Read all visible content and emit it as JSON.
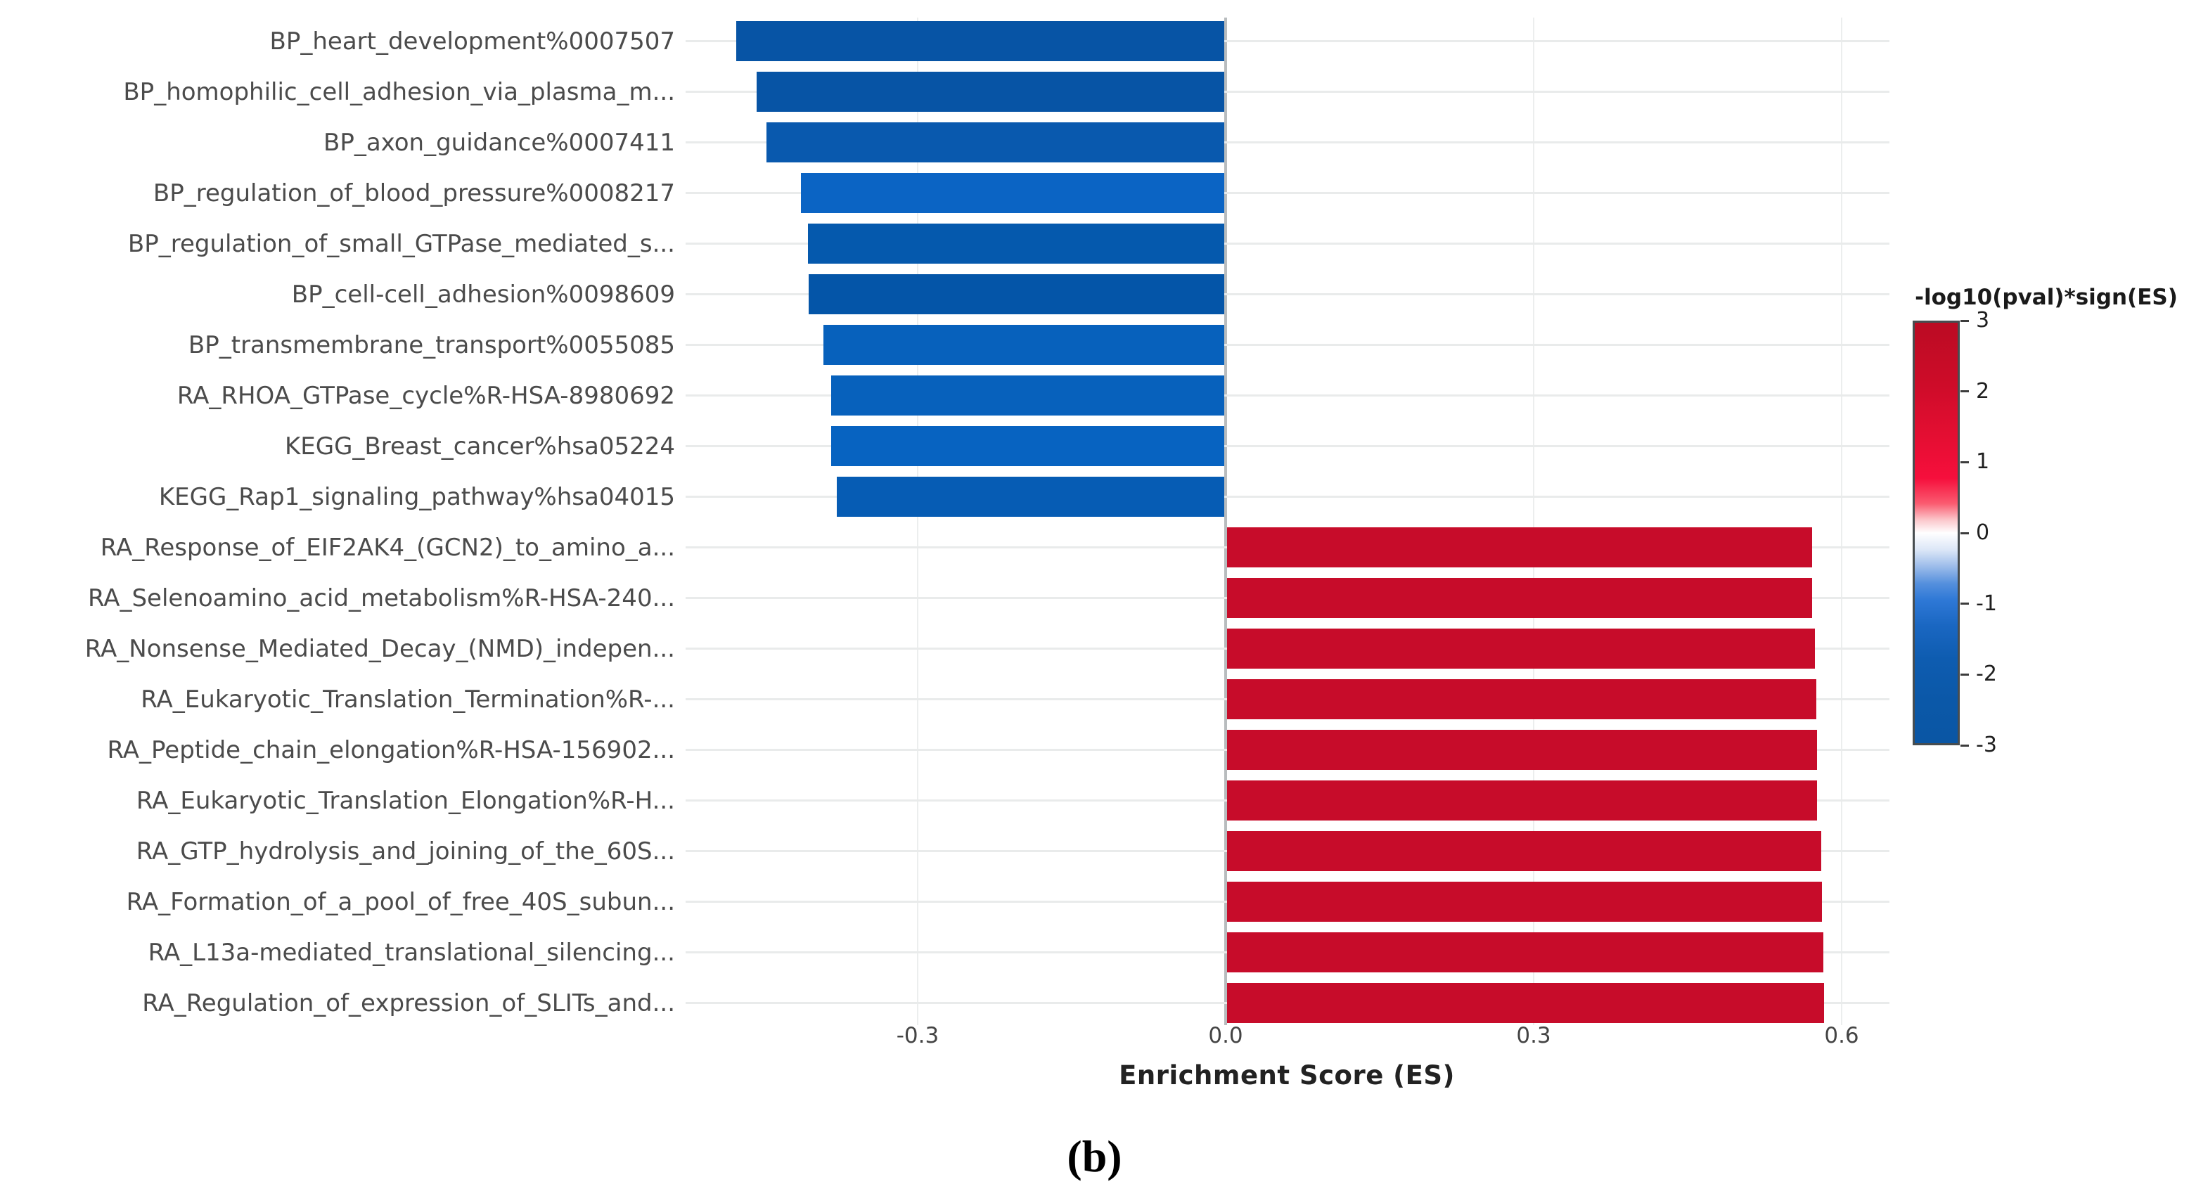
{
  "figure": {
    "caption": "(b)",
    "background_color": "#ffffff"
  },
  "chart_data": {
    "type": "bar",
    "orientation": "horizontal",
    "title": "",
    "xlabel": "Enrichment Score (ES)",
    "ylabel": "",
    "xlim": [
      -0.526,
      0.645
    ],
    "grid": true,
    "zero_line_color": "#b8bcbe",
    "x_ticks": [
      {
        "value": -0.3,
        "label": "-0.3"
      },
      {
        "value": 0.0,
        "label": "0.0"
      },
      {
        "value": 0.3,
        "label": "0.3"
      },
      {
        "value": 0.6,
        "label": "0.6"
      }
    ],
    "categories": [
      "BP_heart_development%0007507",
      "BP_homophilic_cell_adhesion_via_plasma_m...",
      "BP_axon_guidance%0007411",
      "BP_regulation_of_blood_pressure%0008217",
      "BP_regulation_of_small_GTPase_mediated_s...",
      "BP_cell-cell_adhesion%0098609",
      "BP_transmembrane_transport%0055085",
      "RA_RHOA_GTPase_cycle%R-HSA-8980692",
      "KEGG_Breast_cancer%hsa05224",
      "KEGG_Rap1_signaling_pathway%hsa04015",
      "RA_Response_of_EIF2AK4_(GCN2)_to_amino_a...",
      "RA_Selenoamino_acid_metabolism%R-HSA-240...",
      "RA_Nonsense_Mediated_Decay_(NMD)_indepen...",
      "RA_Eukaryotic_Translation_Termination%R-...",
      "RA_Peptide_chain_elongation%R-HSA-156902...",
      "RA_Eukaryotic_Translation_Elongation%R-H...",
      "RA_GTP_hydrolysis_and_joining_of_the_60S...",
      "RA_Formation_of_a_pool_of_free_40S_subun...",
      "RA_L13a-mediated_translational_silencing...",
      "RA_Regulation_of_expression_of_SLITs_and..."
    ],
    "values": [
      -0.477,
      -0.457,
      -0.447,
      -0.414,
      -0.407,
      -0.406,
      -0.392,
      -0.384,
      -0.384,
      -0.379,
      0.571,
      0.571,
      0.574,
      0.575,
      0.576,
      0.576,
      0.58,
      0.581,
      0.582,
      0.583
    ],
    "bar_colors": [
      "#0754a5",
      "#0754a5",
      "#0959ae",
      "#0b64c4",
      "#0559ad",
      "#0455a8",
      "#0761bc",
      "#0761bc",
      "#0763c1",
      "#065cb4",
      "#c70c2a",
      "#c70c2a",
      "#c70c2a",
      "#c70c2a",
      "#c70c2a",
      "#c70c2a",
      "#c70c2a",
      "#c70c2a",
      "#c70c2a",
      "#c70c2a"
    ]
  },
  "legend": {
    "title": "-log10(pval)*sign(ES)",
    "ticks": [
      "3",
      "2",
      "1",
      "0",
      "-1",
      "-2",
      "-3"
    ],
    "range": [
      3,
      -3
    ],
    "gradient_top_color": "#bb0b23",
    "gradient_mid_color": "#ffffff",
    "gradient_bottom_color": "#0a56a4"
  }
}
